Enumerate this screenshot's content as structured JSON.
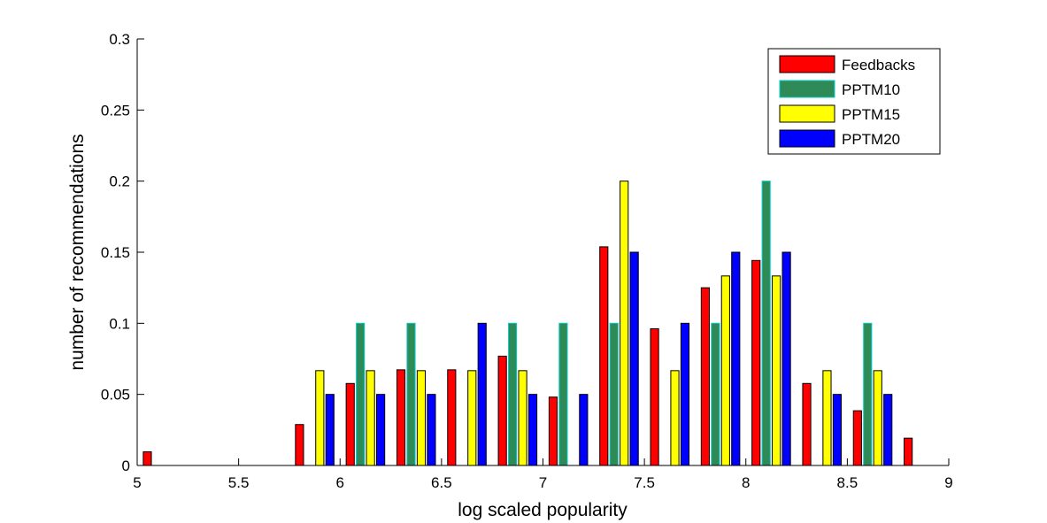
{
  "chart_data": {
    "type": "bar",
    "xlabel": "log scaled popularity",
    "ylabel": "number of recommendations",
    "xlim": [
      5,
      9
    ],
    "ylim": [
      0,
      0.3
    ],
    "xticks": [
      "5",
      "5.5",
      "6",
      "6.5",
      "7",
      "7.5",
      "8",
      "8.5",
      "9"
    ],
    "yticks": [
      "0",
      "0.05",
      "0.1",
      "0.15",
      "0.2",
      "0.25",
      "0.3"
    ],
    "grid": false,
    "legend_position": "top-right",
    "bin_width": 0.25,
    "bin_centers": [
      5.125,
      5.375,
      5.625,
      5.875,
      6.125,
      6.375,
      6.625,
      6.875,
      7.125,
      7.375,
      7.625,
      7.875,
      8.125,
      8.375,
      8.625,
      8.875
    ],
    "series": [
      {
        "name": "Feedbacks",
        "color": "#ff0000",
        "edge": "#000000",
        "values": [
          0.0096,
          0,
          0,
          0.0288,
          0.0577,
          0.0673,
          0.0673,
          0.0769,
          0.0481,
          0.1538,
          0.0962,
          0.125,
          0.1442,
          0.0577,
          0.0385,
          0.0192
        ]
      },
      {
        "name": "PPTM10",
        "color": "#2e8b57",
        "edge": "#00cccc",
        "values": [
          0,
          0,
          0,
          0,
          0.1,
          0.1,
          0,
          0.1,
          0.1,
          0.1,
          0,
          0.1,
          0.2,
          0,
          0.1,
          0
        ]
      },
      {
        "name": "PPTM15",
        "color": "#ffff00",
        "edge": "#000000",
        "values": [
          0,
          0,
          0,
          0.0667,
          0.0667,
          0.0667,
          0.0667,
          0.0667,
          0,
          0.2,
          0.0667,
          0.1333,
          0.1333,
          0.0667,
          0.0667,
          0
        ]
      },
      {
        "name": "PPTM20",
        "color": "#0000ff",
        "edge": "#000000",
        "values": [
          0,
          0,
          0,
          0.05,
          0.05,
          0.05,
          0.1,
          0.05,
          0.05,
          0.15,
          0.1,
          0.15,
          0.15,
          0.05,
          0.05,
          0
        ]
      }
    ]
  }
}
